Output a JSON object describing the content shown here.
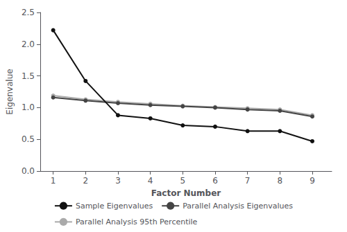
{
  "chart_data": {
    "type": "line",
    "x_label": "Factor Number",
    "y_label": "Eigenvalue",
    "x": [
      1,
      2,
      3,
      4,
      5,
      6,
      7,
      8,
      9
    ],
    "series": [
      {
        "name": "Sample Eigenvalues",
        "color": "#111111",
        "marker": "circle",
        "values": [
          2.22,
          1.42,
          0.88,
          0.83,
          0.72,
          0.7,
          0.63,
          0.63,
          0.47
        ]
      },
      {
        "name": "Parallel Analysis Eigenvalues",
        "color": "#444444",
        "marker": "circle",
        "values": [
          1.16,
          1.11,
          1.07,
          1.04,
          1.02,
          1.0,
          0.97,
          0.95,
          0.86
        ]
      },
      {
        "name": "Parallel Analysis 95th Percentile",
        "color": "#aaaaaa",
        "marker": "circle",
        "values": [
          1.19,
          1.13,
          1.09,
          1.06,
          1.03,
          1.01,
          0.99,
          0.97,
          0.88
        ]
      }
    ],
    "xlim": [
      0.6,
      9.6
    ],
    "xticks": [
      1,
      2,
      3,
      4,
      5,
      6,
      7,
      8,
      9
    ],
    "ylim": [
      0,
      2.5
    ],
    "yticks": [
      {
        "value": 0,
        "label": "0.0"
      },
      0.5,
      {
        "value": 1.0,
        "label": "1.0"
      },
      1.5,
      {
        "value": 2.0,
        "label": "2.0"
      },
      2.5
    ],
    "grid": false,
    "legend": "bottom"
  }
}
